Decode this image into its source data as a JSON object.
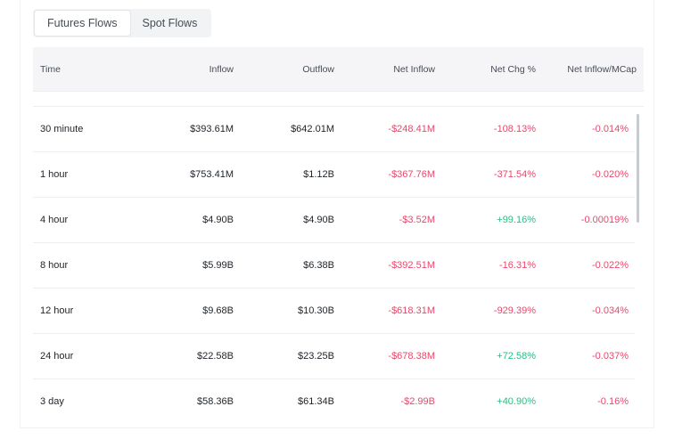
{
  "tabs": [
    {
      "label": "Futures Flows",
      "active": true
    },
    {
      "label": "Spot Flows",
      "active": false
    }
  ],
  "table": {
    "headers": {
      "time": "Time",
      "inflow": "Inflow",
      "outflow": "Outflow",
      "net_inflow": "Net Inflow",
      "net_chg": "Net Chg %",
      "net_mcap": "Net Inflow/MCap"
    },
    "rows": [
      {
        "time": "30 minute",
        "inflow": "$393.61M",
        "outflow": "$642.01M",
        "net_inflow": "-$248.41M",
        "net_chg": "-108.13%",
        "net_mcap": "-0.014%"
      },
      {
        "time": "1 hour",
        "inflow": "$753.41M",
        "outflow": "$1.12B",
        "net_inflow": "-$367.76M",
        "net_chg": "-371.54%",
        "net_mcap": "-0.020%"
      },
      {
        "time": "4 hour",
        "inflow": "$4.90B",
        "outflow": "$4.90B",
        "net_inflow": "-$3.52M",
        "net_chg": "+99.16%",
        "net_mcap": "-0.00019%"
      },
      {
        "time": "8 hour",
        "inflow": "$5.99B",
        "outflow": "$6.38B",
        "net_inflow": "-$392.51M",
        "net_chg": "-16.31%",
        "net_mcap": "-0.022%"
      },
      {
        "time": "12 hour",
        "inflow": "$9.68B",
        "outflow": "$10.30B",
        "net_inflow": "-$618.31M",
        "net_chg": "-929.39%",
        "net_mcap": "-0.034%"
      },
      {
        "time": "24 hour",
        "inflow": "$22.58B",
        "outflow": "$23.25B",
        "net_inflow": "-$678.38M",
        "net_chg": "+72.58%",
        "net_mcap": "-0.037%"
      },
      {
        "time": "3 day",
        "inflow": "$58.36B",
        "outflow": "$61.34B",
        "net_inflow": "-$2.99B",
        "net_chg": "+40.90%",
        "net_mcap": "-0.16%"
      }
    ]
  },
  "colors": {
    "negative": "#e8486c",
    "positive": "#2ebd85",
    "header_bg": "#f5f5f7"
  }
}
